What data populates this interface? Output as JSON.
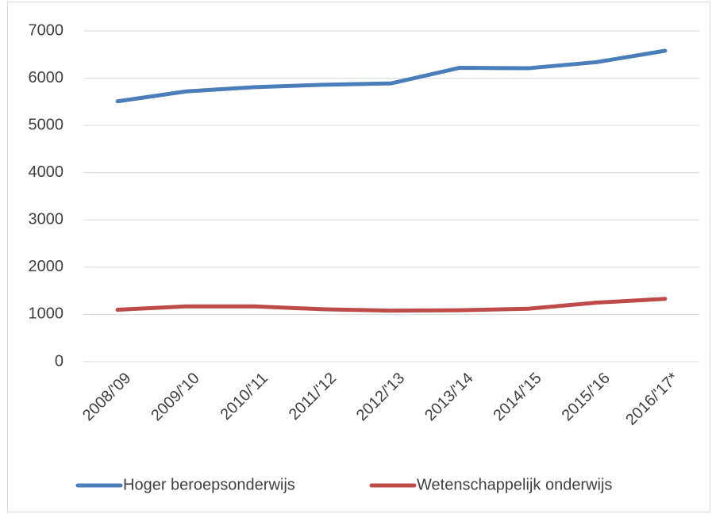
{
  "chart_data": {
    "type": "line",
    "categories": [
      "2008/'09",
      "2009/'10",
      "2010/'11",
      "2011/'12",
      "2012/'13",
      "2013/'14",
      "2014/'15",
      "2015/'16",
      "2016/'17*"
    ],
    "series": [
      {
        "name": "Hoger beroepsonderwijs",
        "color": "#4a7ebb",
        "values": [
          5510,
          5720,
          5810,
          5860,
          5890,
          6220,
          6210,
          6340,
          6580
        ]
      },
      {
        "name": "Wetenschappelijk onderwijs",
        "color": "#be4b48",
        "values": [
          1100,
          1170,
          1170,
          1110,
          1080,
          1090,
          1120,
          1250,
          1330
        ]
      }
    ],
    "ylim": [
      0,
      7000
    ],
    "yticks": [
      0,
      1000,
      2000,
      3000,
      4000,
      5000,
      6000,
      7000
    ],
    "grid": true,
    "legend": "bottom"
  }
}
